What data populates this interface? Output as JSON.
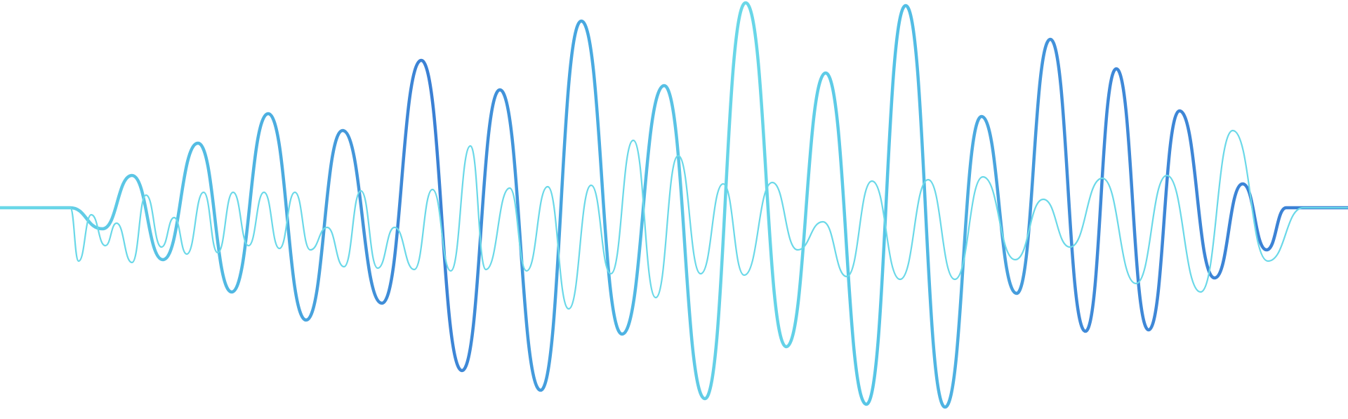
{
  "artwork": {
    "subject": "sound-wave",
    "waves": [
      {
        "name": "main-wave",
        "role": "primary",
        "gradient": [
          "#6ad8e8",
          "#46a8e0",
          "#3a7fd4",
          "#46a8e0",
          "#3f8ad8"
        ]
      },
      {
        "name": "thin-wave",
        "role": "secondary",
        "color": "#6ad8e8"
      }
    ],
    "background": "#ffffff"
  }
}
